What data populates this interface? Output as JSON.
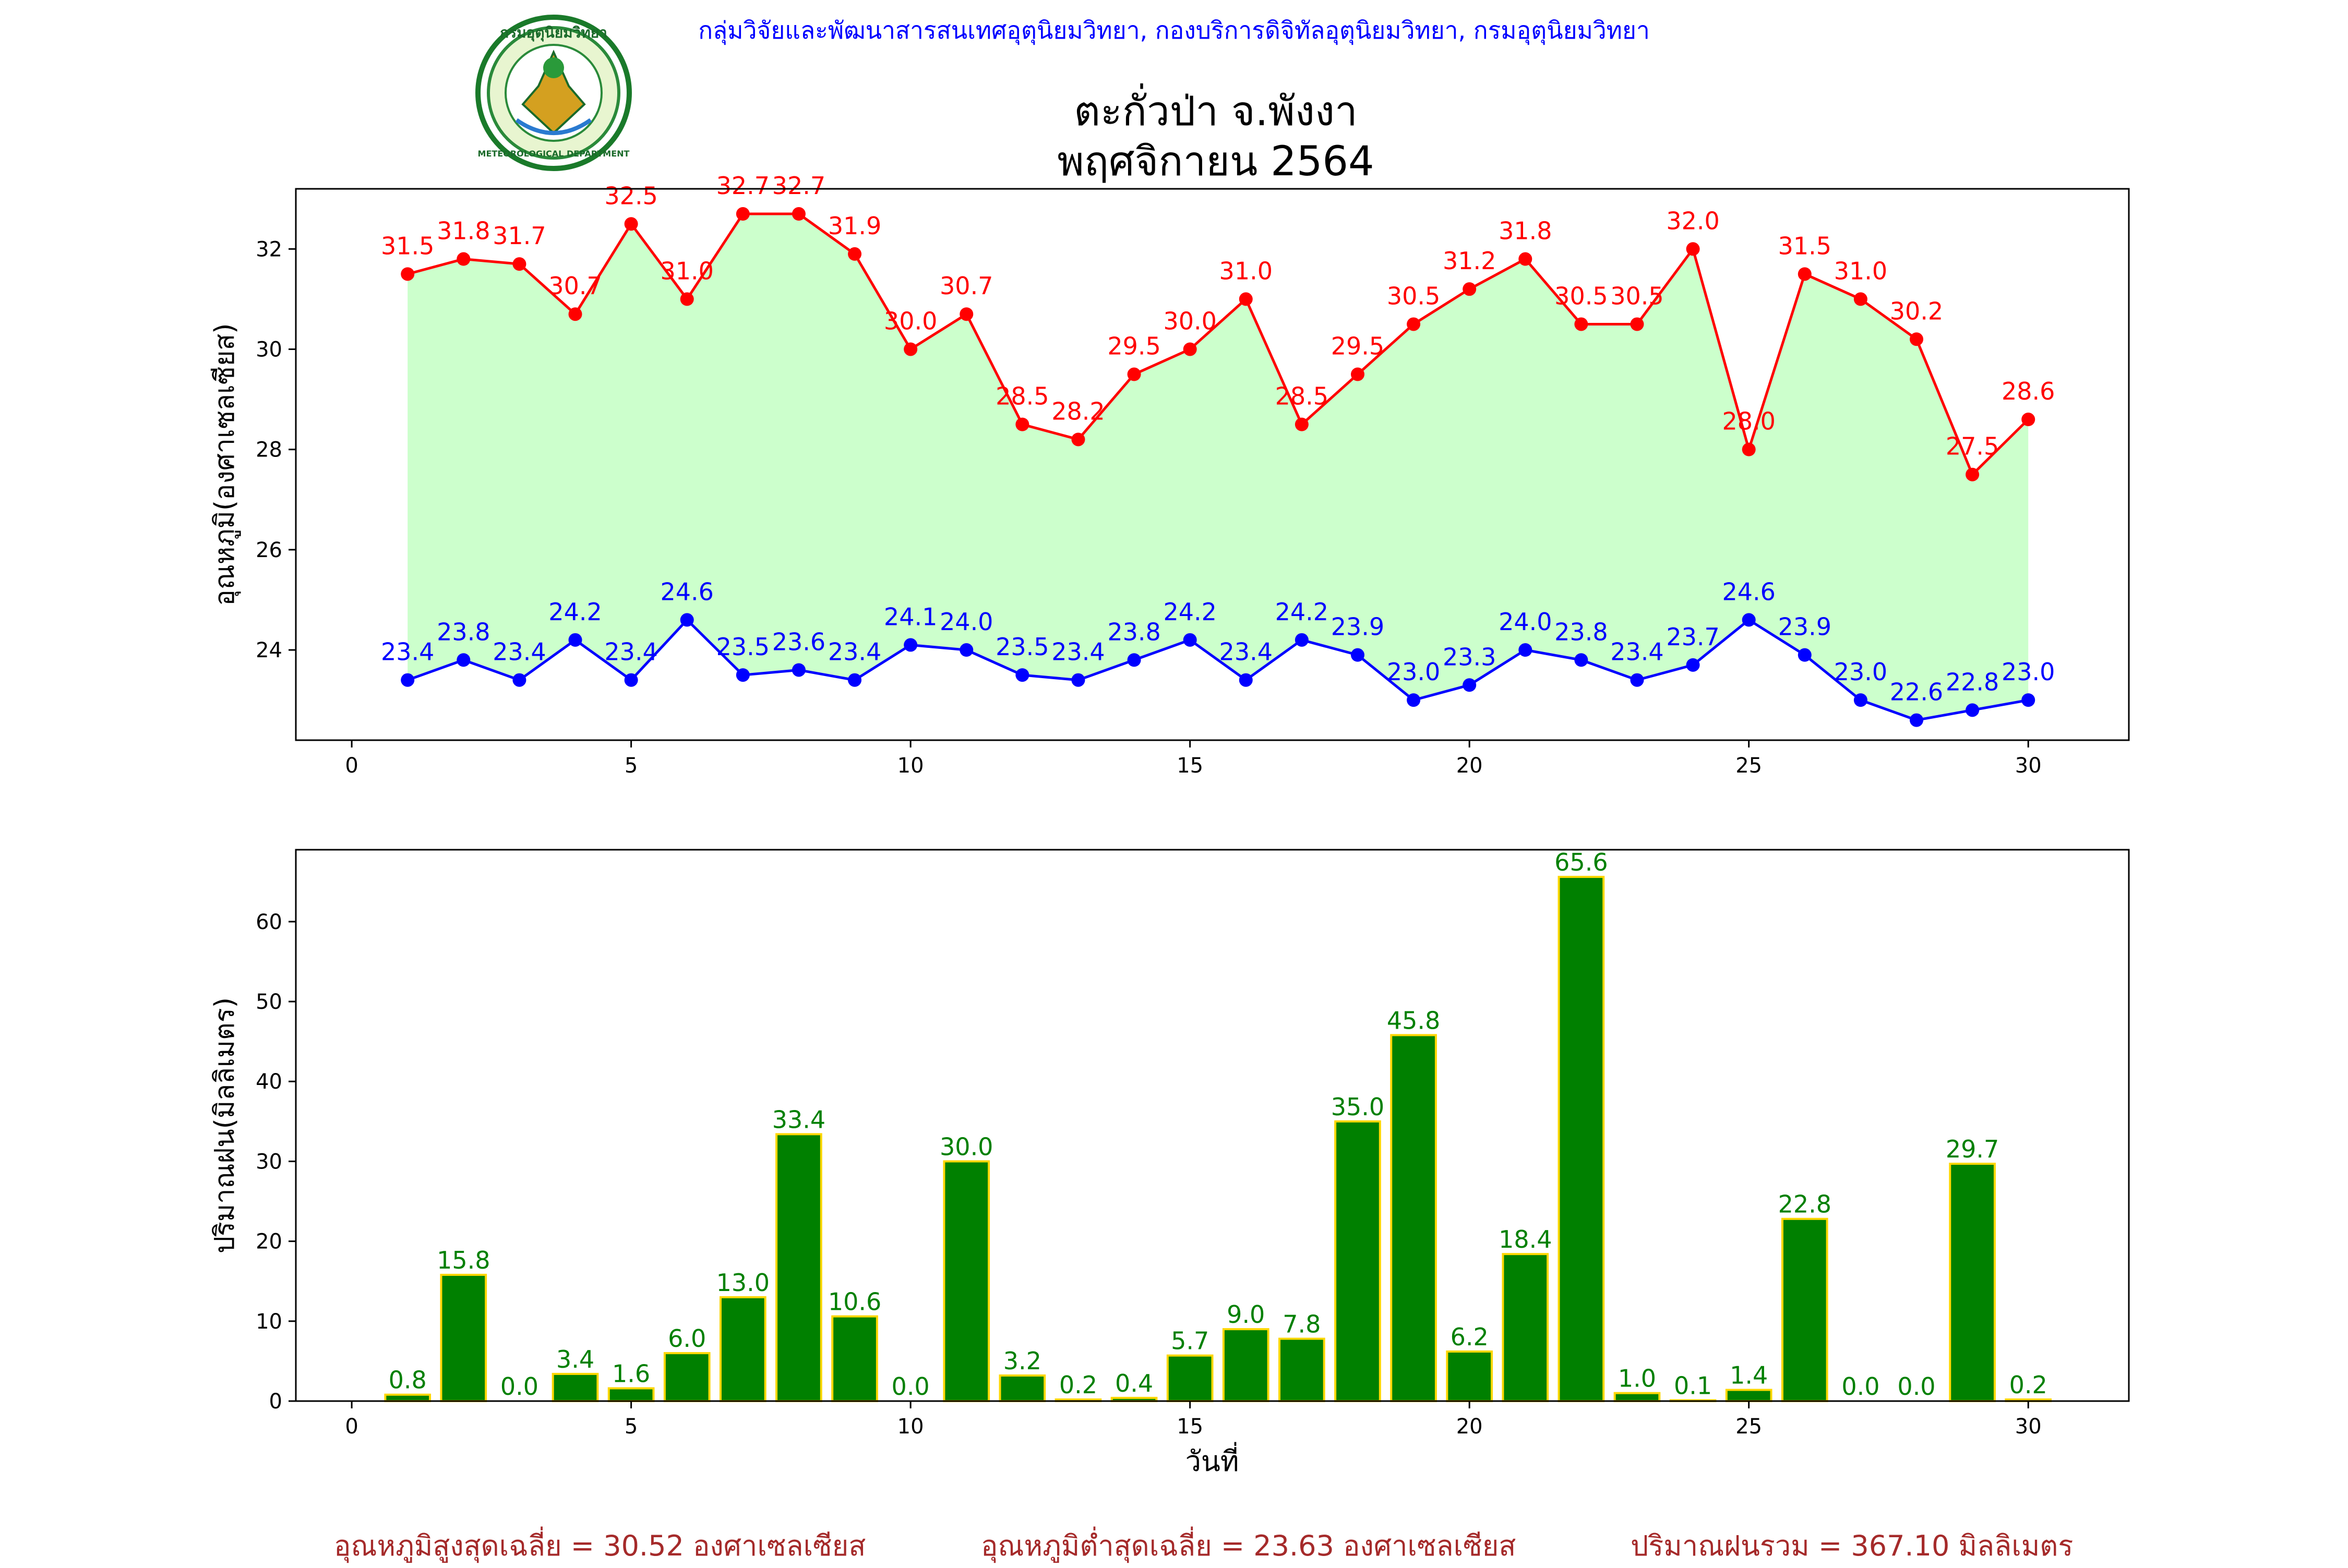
{
  "header": {
    "agency": "กลุ่มวิจัยและพัฒนาสารสนเทศอุตุนิยมวิทยา, กองบริการดิจิทัลอุตุนิยมวิทยา, กรมอุตุนิยมวิทยา",
    "title_line1": "ตะกั่วป่า จ.พังงา",
    "title_line2": "พฤศจิกายน 2564",
    "logo_text": "METEOROLOGICAL DEPARTMENT",
    "logo_top_text": "กรมอุตุนิยมวิทยา"
  },
  "colors": {
    "max_line": "#ff0000",
    "min_line": "#0000ff",
    "fill": "#ccffcc",
    "bar": "#008000",
    "bar_edge": "#ffd700",
    "footer": "#a52a2a",
    "agency": "#0000ff"
  },
  "chart_data": [
    {
      "type": "line",
      "ylabel": "อุณหภูมิ(องศาเซลเซียส)",
      "xlabel": "",
      "xlim": [
        -1,
        31.8
      ],
      "ylim": [
        22.2,
        33.2
      ],
      "xticks": [
        0,
        5,
        10,
        15,
        20,
        25,
        30
      ],
      "yticks": [
        24,
        26,
        28,
        30,
        32
      ],
      "x": [
        1,
        2,
        3,
        4,
        5,
        6,
        7,
        8,
        9,
        10,
        11,
        12,
        13,
        14,
        15,
        16,
        17,
        18,
        19,
        20,
        21,
        22,
        23,
        24,
        25,
        26,
        27,
        28,
        29,
        30
      ],
      "series": [
        {
          "values": [
            31.5,
            31.8,
            31.7,
            30.7,
            32.5,
            31.0,
            32.7,
            32.7,
            31.9,
            30.0,
            30.7,
            28.5,
            28.2,
            29.5,
            30.0,
            31.0,
            28.5,
            29.5,
            30.5,
            31.2,
            31.8,
            30.5,
            30.5,
            32.0,
            28.0,
            31.5,
            31.0,
            30.2,
            27.5,
            28.6
          ]
        },
        {
          "values": [
            23.4,
            23.8,
            23.4,
            24.2,
            23.4,
            24.6,
            23.5,
            23.6,
            23.4,
            24.1,
            24.0,
            23.5,
            23.4,
            23.8,
            24.2,
            23.4,
            24.2,
            23.9,
            23.0,
            23.3,
            24.0,
            23.8,
            23.4,
            23.7,
            24.6,
            23.9,
            23.0,
            22.6,
            22.8,
            23.0
          ]
        }
      ]
    },
    {
      "type": "bar",
      "ylabel": "ปริมาณฝน(มิลลิเมตร)",
      "xlabel": "วันที่",
      "xlim": [
        -1,
        31.8
      ],
      "ylim": [
        0,
        69
      ],
      "xticks": [
        0,
        5,
        10,
        15,
        20,
        25,
        30
      ],
      "yticks": [
        0,
        10,
        20,
        30,
        40,
        50,
        60
      ],
      "x": [
        1,
        2,
        3,
        4,
        5,
        6,
        7,
        8,
        9,
        10,
        11,
        12,
        13,
        14,
        15,
        16,
        17,
        18,
        19,
        20,
        21,
        22,
        23,
        24,
        25,
        26,
        27,
        28,
        29,
        30
      ],
      "values": [
        0.8,
        15.8,
        0.0,
        3.4,
        1.6,
        6.0,
        13.0,
        33.4,
        10.6,
        0.0,
        30.0,
        3.2,
        0.2,
        0.4,
        5.7,
        9.0,
        7.8,
        35.0,
        45.8,
        6.2,
        18.4,
        65.6,
        1.0,
        0.1,
        1.4,
        22.8,
        0.0,
        0.0,
        29.7,
        0.2
      ]
    }
  ],
  "footer": {
    "avg_max": "อุณหภูมิสูงสุดเฉลี่ย = 30.52 องศาเซลเซียส",
    "avg_min": "อุณหภูมิต่ำสุดเฉลี่ย = 23.63 องศาเซลเซียส",
    "total_rain": "ปริมาณฝนรวม = 367.10 มิลลิเมตร"
  }
}
